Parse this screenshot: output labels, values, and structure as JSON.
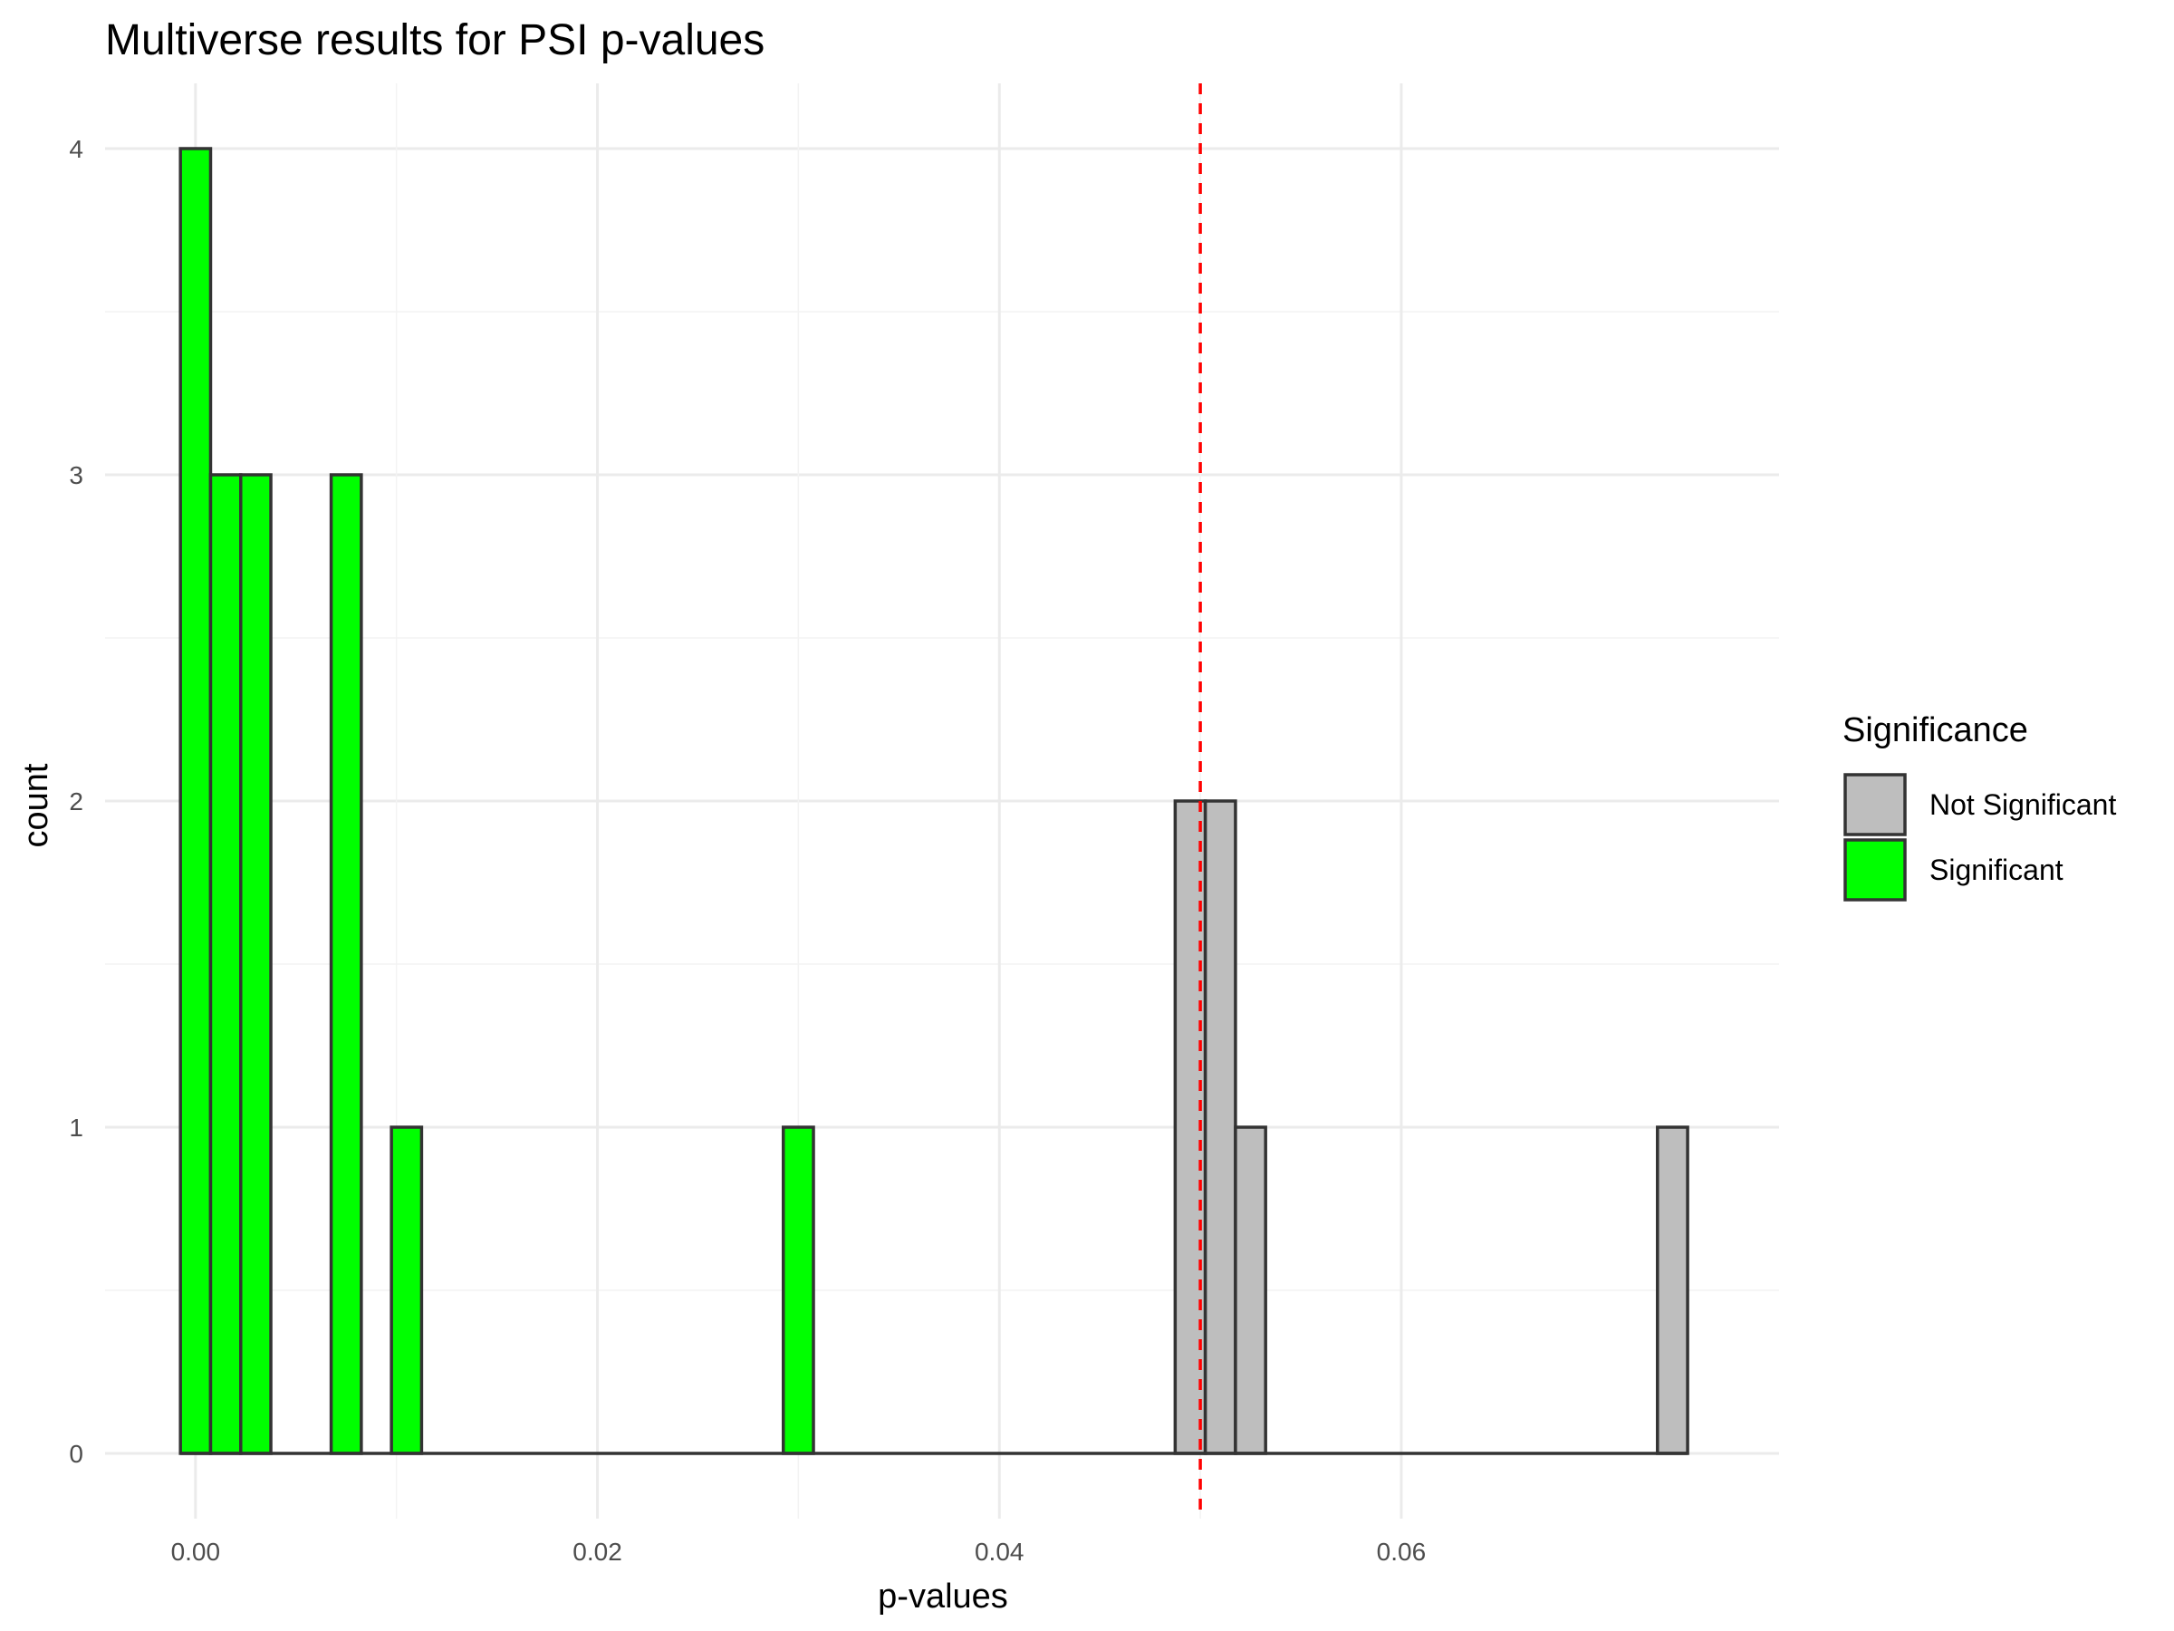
{
  "chart_data": {
    "type": "bar",
    "subtype": "histogram",
    "title": "Multiverse results for PSI p-values",
    "xlabel": "p-values",
    "ylabel": "count",
    "xlim": [
      -0.0045,
      0.0788
    ],
    "ylim": [
      -0.2,
      4.2
    ],
    "xticks": [
      0.0,
      0.02,
      0.04,
      0.06
    ],
    "xtick_labels": [
      "0.00",
      "0.02",
      "0.04",
      "0.06"
    ],
    "yticks": [
      0,
      1,
      2,
      3,
      4
    ],
    "ytick_labels": [
      "0",
      "1",
      "2",
      "3",
      "4"
    ],
    "grid": true,
    "legend_position": "right",
    "threshold": {
      "x": 0.05,
      "color": "#ff0000",
      "style": "dashed"
    },
    "bin_width": 0.0015,
    "series": [
      {
        "name": "Significant",
        "color": "#00ff00",
        "bins": [
          {
            "x": 0.0,
            "count": 4
          },
          {
            "x": 0.0015,
            "count": 3
          },
          {
            "x": 0.003,
            "count": 3
          },
          {
            "x": 0.0045,
            "count": 0
          },
          {
            "x": 0.006,
            "count": 0
          },
          {
            "x": 0.0075,
            "count": 3
          },
          {
            "x": 0.009,
            "count": 0
          },
          {
            "x": 0.0105,
            "count": 1
          },
          {
            "x": 0.03,
            "count": 1
          }
        ]
      },
      {
        "name": "Not Significant",
        "color": "#bebebe",
        "bins": [
          {
            "x": 0.0495,
            "count": 2
          },
          {
            "x": 0.051,
            "count": 2
          },
          {
            "x": 0.0525,
            "count": 1
          },
          {
            "x": 0.0735,
            "count": 1
          }
        ]
      }
    ],
    "legend": {
      "title": "Significance",
      "entries": [
        {
          "label": "Not Significant",
          "color": "#bebebe"
        },
        {
          "label": "Significant",
          "color": "#00ff00"
        }
      ]
    }
  }
}
